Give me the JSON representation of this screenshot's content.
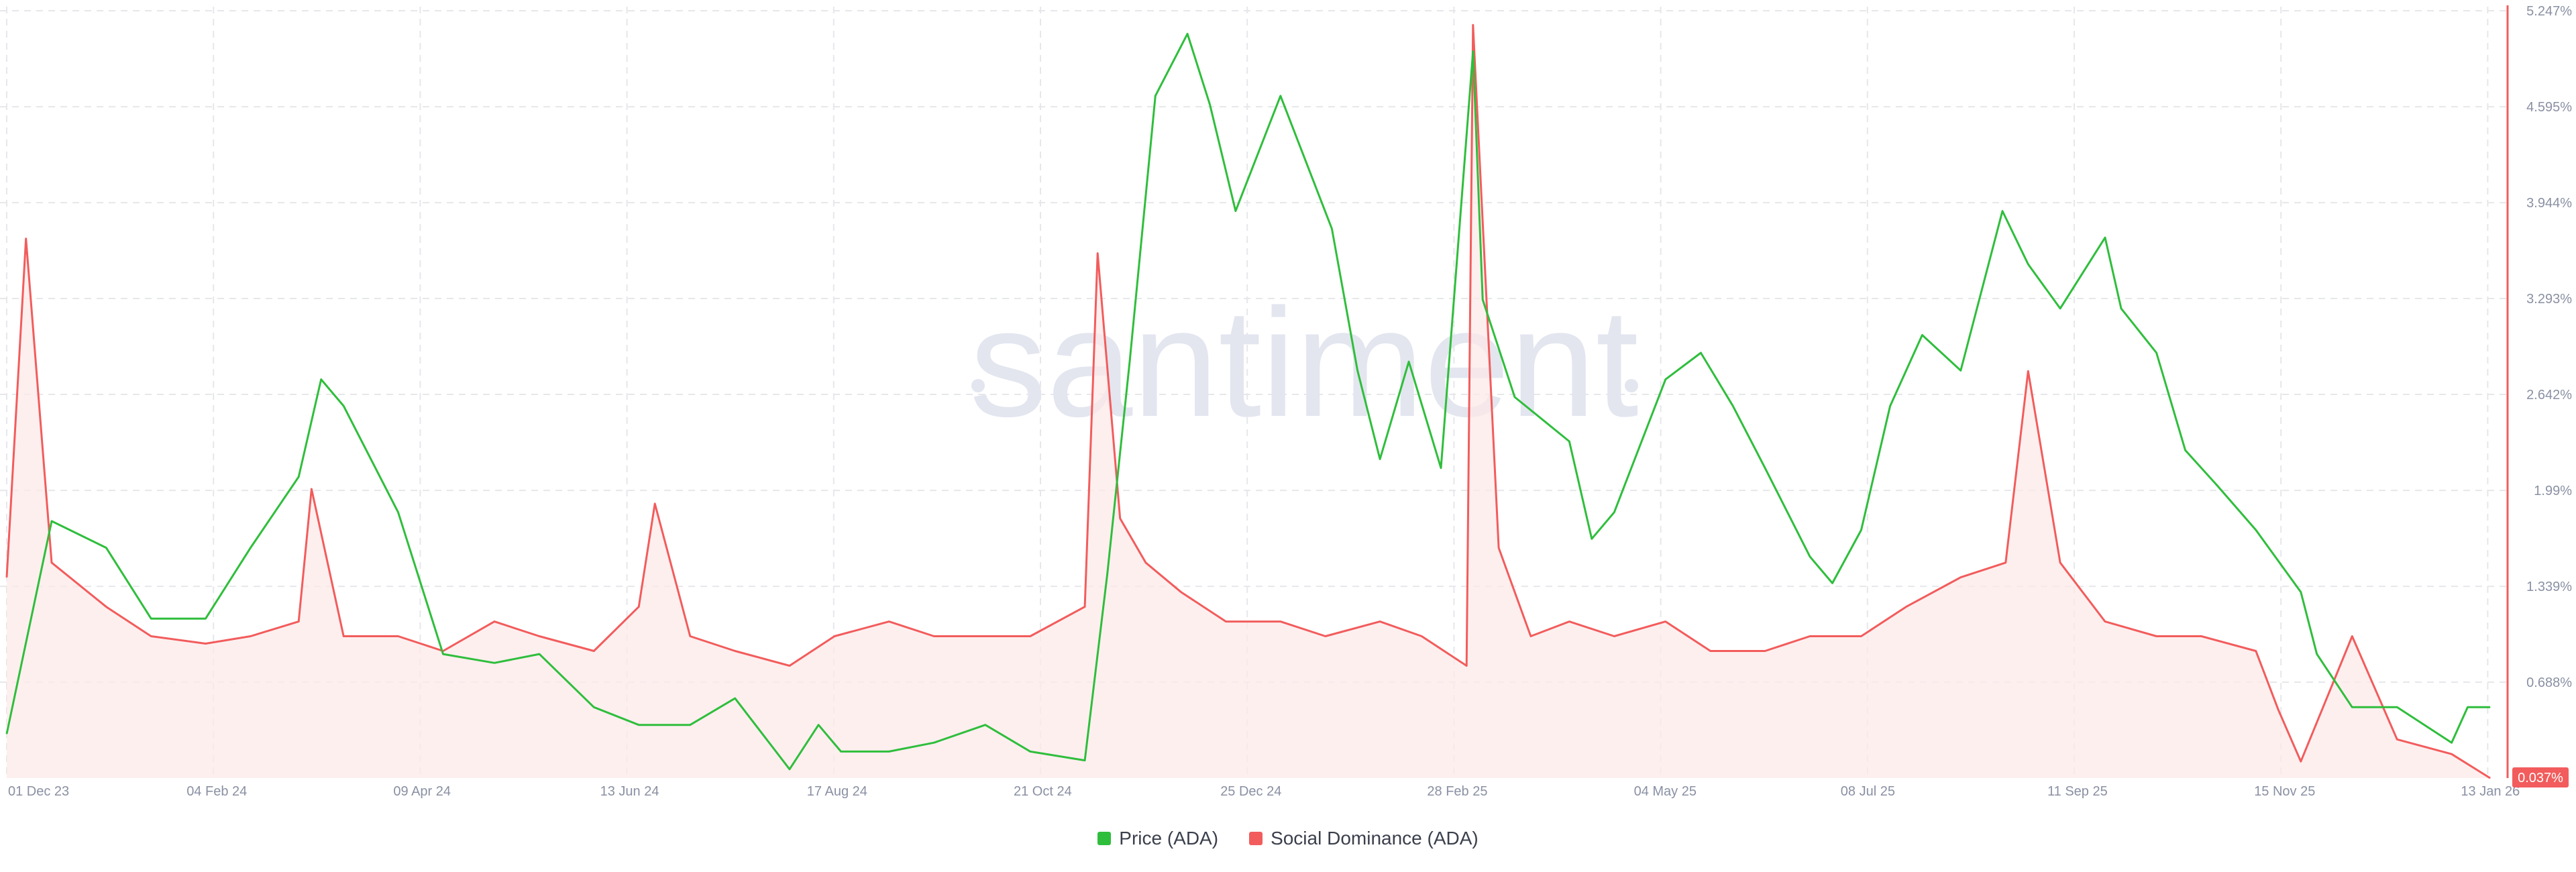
{
  "watermark": "santiment",
  "legend": {
    "price_label": "Price (ADA)",
    "dominance_label": "Social Dominance (ADA)"
  },
  "colors": {
    "price": "#2fbe3c",
    "dominance": "#f25c5c",
    "dominance_fill": "#fde8e8",
    "grid": "#e6e7eb",
    "tick_text": "#8a90a3",
    "watermark": "#e3e6ef"
  },
  "chart_data": {
    "type": "line",
    "x_tick_labels": [
      "01 Dec 23",
      "04 Feb 24",
      "09 Apr 24",
      "13 Jun 24",
      "17 Aug 24",
      "21 Oct 24",
      "25 Dec 24",
      "28 Feb 25",
      "04 May 25",
      "08 Jul 25",
      "11 Sep 25",
      "15 Nov 25",
      "13 Jan 26"
    ],
    "y_right_ticks": [
      "5.247%",
      "4.595%",
      "3.944%",
      "3.293%",
      "2.642%",
      "1.99%",
      "1.339%",
      "0.688%"
    ],
    "y_right_range": [
      0.037,
      5.247
    ],
    "current_value_badge": "0.037%",
    "series": [
      {
        "name": "Price (ADA)",
        "axis": "hidden-left",
        "x": [
          "2023-12-01",
          "2023-12-15",
          "2024-01-01",
          "2024-01-15",
          "2024-02-01",
          "2024-02-15",
          "2024-03-01",
          "2024-03-08",
          "2024-03-15",
          "2024-04-01",
          "2024-04-15",
          "2024-05-01",
          "2024-05-15",
          "2024-06-01",
          "2024-06-15",
          "2024-07-01",
          "2024-07-15",
          "2024-08-01",
          "2024-08-10",
          "2024-08-17",
          "2024-09-01",
          "2024-09-15",
          "2024-10-01",
          "2024-10-15",
          "2024-11-01",
          "2024-11-08",
          "2024-11-15",
          "2024-11-23",
          "2024-12-03",
          "2024-12-10",
          "2024-12-18",
          "2025-01-01",
          "2025-01-17",
          "2025-01-25",
          "2025-02-01",
          "2025-02-10",
          "2025-02-20",
          "2025-03-02",
          "2025-03-05",
          "2025-03-15",
          "2025-04-01",
          "2025-04-08",
          "2025-04-15",
          "2025-05-01",
          "2025-05-12",
          "2025-05-22",
          "2025-06-01",
          "2025-06-15",
          "2025-06-22",
          "2025-07-01",
          "2025-07-10",
          "2025-07-20",
          "2025-08-01",
          "2025-08-14",
          "2025-08-22",
          "2025-09-01",
          "2025-09-15",
          "2025-09-20",
          "2025-10-01",
          "2025-10-10",
          "2025-10-20",
          "2025-11-01",
          "2025-11-15",
          "2025-11-20",
          "2025-12-01",
          "2025-12-15",
          "2026-01-01",
          "2026-01-06",
          "2026-01-13"
        ],
        "values": [
          0.37,
          0.61,
          0.58,
          0.5,
          0.5,
          0.58,
          0.66,
          0.77,
          0.74,
          0.62,
          0.46,
          0.45,
          0.46,
          0.4,
          0.38,
          0.38,
          0.41,
          0.33,
          0.38,
          0.35,
          0.35,
          0.36,
          0.38,
          0.35,
          0.34,
          0.55,
          0.79,
          1.09,
          1.16,
          1.08,
          0.96,
          1.09,
          0.94,
          0.78,
          0.68,
          0.79,
          0.67,
          1.14,
          0.86,
          0.75,
          0.7,
          0.59,
          0.62,
          0.77,
          0.8,
          0.74,
          0.67,
          0.57,
          0.54,
          0.6,
          0.74,
          0.82,
          0.78,
          0.96,
          0.9,
          0.85,
          0.93,
          0.85,
          0.8,
          0.69,
          0.65,
          0.6,
          0.53,
          0.46,
          0.4,
          0.4,
          0.36,
          0.4,
          0.4
        ]
      },
      {
        "name": "Social Dominance (ADA)",
        "axis": "right",
        "unit": "%",
        "x": [
          "2023-12-01",
          "2023-12-07",
          "2023-12-15",
          "2024-01-01",
          "2024-01-15",
          "2024-02-01",
          "2024-02-15",
          "2024-03-01",
          "2024-03-05",
          "2024-03-15",
          "2024-04-01",
          "2024-04-15",
          "2024-05-01",
          "2024-05-15",
          "2024-06-01",
          "2024-06-15",
          "2024-06-20",
          "2024-07-01",
          "2024-07-15",
          "2024-08-01",
          "2024-08-15",
          "2024-09-01",
          "2024-09-15",
          "2024-10-01",
          "2024-10-15",
          "2024-11-01",
          "2024-11-05",
          "2024-11-12",
          "2024-11-20",
          "2024-12-01",
          "2024-12-15",
          "2025-01-01",
          "2025-01-15",
          "2025-02-01",
          "2025-02-14",
          "2025-02-28",
          "2025-03-02",
          "2025-03-10",
          "2025-03-20",
          "2025-04-01",
          "2025-04-15",
          "2025-05-01",
          "2025-05-15",
          "2025-06-01",
          "2025-06-15",
          "2025-07-01",
          "2025-07-15",
          "2025-08-01",
          "2025-08-15",
          "2025-08-22",
          "2025-09-01",
          "2025-09-15",
          "2025-10-01",
          "2025-10-15",
          "2025-11-01",
          "2025-11-08",
          "2025-11-15",
          "2025-12-01",
          "2025-12-15",
          "2026-01-01",
          "2026-01-13"
        ],
        "values": [
          1.4,
          3.7,
          1.5,
          1.2,
          1.0,
          0.95,
          1.0,
          1.1,
          2.0,
          1.0,
          1.0,
          0.9,
          1.1,
          1.0,
          0.9,
          1.2,
          1.9,
          1.0,
          0.9,
          0.8,
          1.0,
          1.1,
          1.0,
          1.0,
          1.0,
          1.2,
          3.6,
          1.8,
          1.5,
          1.3,
          1.1,
          1.1,
          1.0,
          1.1,
          1.0,
          0.8,
          5.15,
          1.6,
          1.0,
          1.1,
          1.0,
          1.1,
          0.9,
          0.9,
          1.0,
          1.0,
          1.2,
          1.4,
          1.5,
          2.8,
          1.5,
          1.1,
          1.0,
          1.0,
          0.9,
          0.5,
          0.15,
          1.0,
          0.3,
          0.2,
          0.037
        ]
      }
    ],
    "legend_position": "bottom-center",
    "grid": true
  }
}
